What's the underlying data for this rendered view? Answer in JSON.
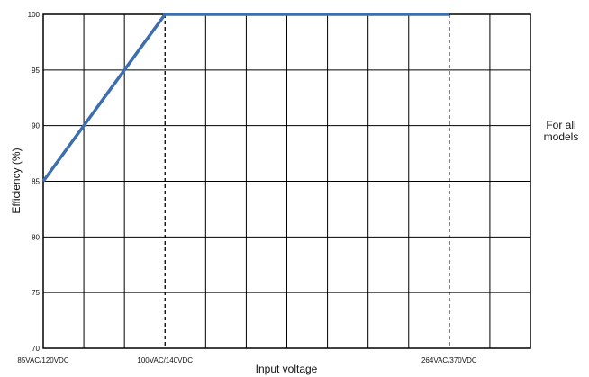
{
  "chart_data": {
    "type": "line",
    "title": "",
    "xlabel": "Input voltage",
    "ylabel": "Efficiency (%)",
    "ylim": [
      70,
      100
    ],
    "yticks": [
      70,
      75,
      80,
      85,
      90,
      95,
      100
    ],
    "xlim": [
      0,
      12
    ],
    "x_tick_labels": [
      {
        "x": 0,
        "label": "85VAC/120VDC"
      },
      {
        "x": 3,
        "label": "100VAC/140VDC"
      },
      {
        "x": 10,
        "label": "264VAC/370VDC"
      }
    ],
    "grid": true,
    "series": [
      {
        "color": "#3d6eb0",
        "points": [
          {
            "x": 0,
            "y": 85
          },
          {
            "x": 3,
            "y": 100
          },
          {
            "x": 10,
            "y": 100
          }
        ]
      }
    ],
    "dashed_lines_x": [
      3,
      10
    ],
    "annotation": [
      "For all",
      "models"
    ]
  }
}
